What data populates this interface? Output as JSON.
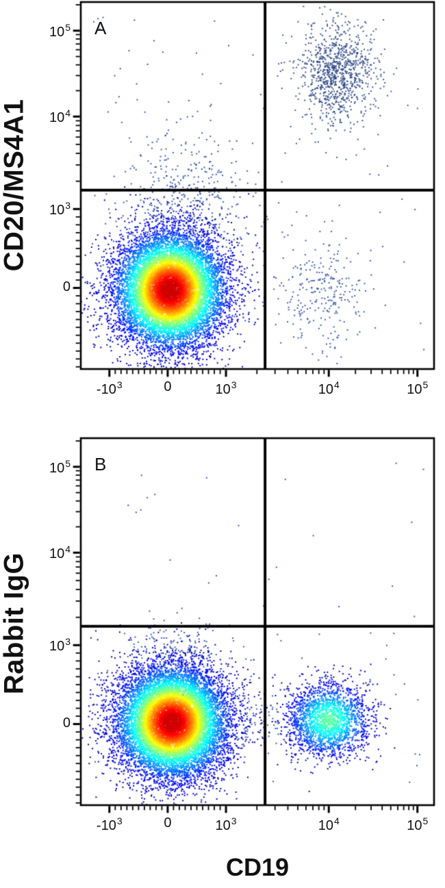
{
  "figure": {
    "xlabel": "CD19",
    "background_color": "#ffffff",
    "panels": [
      {
        "label": "A",
        "ylabel": "CD20/MS4A1"
      },
      {
        "label": "B",
        "ylabel": "Rabbit IgG"
      }
    ]
  },
  "colors": {
    "axis": "#000000",
    "dot_blue": "#2447a0",
    "density_colormap": "jet (blue-cyan-green-yellow-orange-red)"
  },
  "chart_data": [
    {
      "type": "scatter",
      "subtype": "flow-cytometry-density-plot",
      "panel_label": "A",
      "xlabel": "CD19",
      "ylabel": "CD20/MS4A1",
      "x_scale": "biexponential",
      "y_scale": "biexponential",
      "x_range": [
        -1500,
        150000
      ],
      "y_range": [
        -1050,
        210000
      ],
      "grid": false,
      "point_size": 2,
      "x_ticks": [
        {
          "value": -1000,
          "label": "-10^3"
        },
        {
          "value": 0,
          "label": "0"
        },
        {
          "value": 1000,
          "label": "10^3"
        },
        {
          "value": 10000,
          "label": "10^4"
        },
        {
          "value": 100000,
          "label": "10^5"
        }
      ],
      "y_ticks": [
        {
          "value": 0,
          "label": "0"
        },
        {
          "value": 1000,
          "label": "10^3"
        },
        {
          "value": 10000,
          "label": "10^4"
        },
        {
          "value": 100000,
          "label": "10^5"
        }
      ],
      "quadrant_gate": {
        "x": 2400,
        "y": 1600
      },
      "populations": [
        {
          "name": "sparse background events",
          "render": "uniform",
          "fx": 0.5,
          "fy": 0.5,
          "sx": 0.47,
          "sy": 0.46,
          "count": 120,
          "color": "#2447a0"
        },
        {
          "name": "CD20-low smear above main population",
          "render": "solid",
          "x_center": 240,
          "y_center": 1090,
          "sx": 0.09,
          "sy": 0.1,
          "count": 450,
          "color": "#2447a0"
        },
        {
          "name": "CD19+ CD20- cells (lower right quadrant)",
          "render": "solid",
          "x_center": 7500,
          "y_center": -70,
          "sx": 0.062,
          "sy": 0.075,
          "count": 260,
          "color": "#2447a0"
        },
        {
          "name": "CD19+ CD20+ B cells (upper right quadrant)",
          "render": "solid",
          "x_center": 12000,
          "y_center": 34000,
          "sx": 0.052,
          "sy": 0.068,
          "count": 950,
          "color": "#24417f"
        },
        {
          "name": "CD19- CD20- main lymphocyte population",
          "render": "density",
          "x_center": 30,
          "y_center": -20,
          "sx": 0.0775,
          "sy": 0.0784,
          "count": 12000,
          "intensity": 0.9
        }
      ]
    },
    {
      "type": "scatter",
      "subtype": "flow-cytometry-density-plot",
      "panel_label": "B",
      "xlabel": "CD19",
      "ylabel": "Rabbit IgG",
      "x_scale": "biexponential",
      "y_scale": "biexponential",
      "x_range": [
        -1500,
        150000
      ],
      "y_range": [
        -1050,
        210000
      ],
      "grid": false,
      "point_size": 2,
      "x_ticks": [
        {
          "value": -1000,
          "label": "-10^3"
        },
        {
          "value": 0,
          "label": "0"
        },
        {
          "value": 1000,
          "label": "10^3"
        },
        {
          "value": 10000,
          "label": "10^4"
        },
        {
          "value": 100000,
          "label": "10^5"
        }
      ],
      "y_ticks": [
        {
          "value": 0,
          "label": "0"
        },
        {
          "value": 1000,
          "label": "10^3"
        },
        {
          "value": 10000,
          "label": "10^4"
        },
        {
          "value": 100000,
          "label": "10^5"
        }
      ],
      "quadrant_gate": {
        "x": 2400,
        "y": 1600
      },
      "populations": [
        {
          "name": "sparse background events",
          "render": "uniform",
          "fx": 0.5,
          "fy": 0.5,
          "sx": 0.47,
          "sy": 0.46,
          "count": 70,
          "color": "#2447a0"
        },
        {
          "name": "bridge events between populations",
          "render": "solid",
          "x_center": 1600,
          "y_center": 0,
          "sx": 0.1,
          "sy": 0.04,
          "count": 130,
          "color": "#2447a0"
        },
        {
          "name": "IgG-low smear above main population",
          "render": "solid",
          "x_center": 60,
          "y_center": 840,
          "sx": 0.085,
          "sy": 0.055,
          "count": 230,
          "color": "#2447a0"
        },
        {
          "name": "CD19+ rabbit-IgG-negative population (lower right quadrant)",
          "render": "density",
          "x_center": 9800,
          "y_center": 60,
          "sx": 0.06,
          "sy": 0.052,
          "count": 2200,
          "intensity": 0.42
        },
        {
          "name": "CD19- main lymphocyte population",
          "render": "density",
          "x_center": 60,
          "y_center": 30,
          "sx": 0.0775,
          "sy": 0.075,
          "count": 12000,
          "intensity": 0.9
        }
      ]
    }
  ]
}
